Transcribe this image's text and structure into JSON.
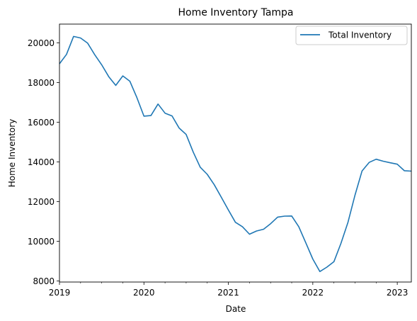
{
  "chart_data": {
    "type": "line",
    "title": "Home Inventory Tampa",
    "xlabel": "Date",
    "ylabel": "Home Inventory",
    "xlim": [
      "2019-01",
      "2023-03"
    ],
    "ylim": [
      7950,
      20950
    ],
    "x_ticks": [
      "2019",
      "2020",
      "2021",
      "2022",
      "2023"
    ],
    "y_ticks": [
      "8000",
      "10000",
      "12000",
      "14000",
      "16000",
      "18000",
      "20000"
    ],
    "grid": false,
    "legend": "top-right",
    "series": [
      {
        "name": "Total Inventory",
        "color": "#1f77b4",
        "x": [
          "2019-01",
          "2019-02",
          "2019-03",
          "2019-04",
          "2019-05",
          "2019-06",
          "2019-07",
          "2019-08",
          "2019-09",
          "2019-10",
          "2019-11",
          "2019-12",
          "2020-01",
          "2020-02",
          "2020-03",
          "2020-04",
          "2020-05",
          "2020-06",
          "2020-07",
          "2020-08",
          "2020-09",
          "2020-10",
          "2020-11",
          "2020-12",
          "2021-01",
          "2021-02",
          "2021-03",
          "2021-04",
          "2021-05",
          "2021-06",
          "2021-07",
          "2021-08",
          "2021-09",
          "2021-10",
          "2021-11",
          "2021-12",
          "2022-01",
          "2022-02",
          "2022-03",
          "2022-04",
          "2022-05",
          "2022-06",
          "2022-07",
          "2022-08",
          "2022-09",
          "2022-10",
          "2022-11",
          "2022-12",
          "2023-01",
          "2023-02",
          "2023-03"
        ],
        "y": [
          18950,
          19420,
          20330,
          20250,
          19990,
          19410,
          18900,
          18300,
          17860,
          18340,
          18070,
          17250,
          16310,
          16340,
          16920,
          16460,
          16320,
          15710,
          15390,
          14500,
          13740,
          13380,
          12850,
          12220,
          11580,
          10960,
          10740,
          10360,
          10520,
          10610,
          10890,
          11220,
          11270,
          11280,
          10740,
          9930,
          9110,
          8480,
          8700,
          8980,
          9900,
          10960,
          12340,
          13550,
          13980,
          14140,
          14040,
          13960,
          13890,
          13560,
          13540
        ]
      }
    ]
  }
}
